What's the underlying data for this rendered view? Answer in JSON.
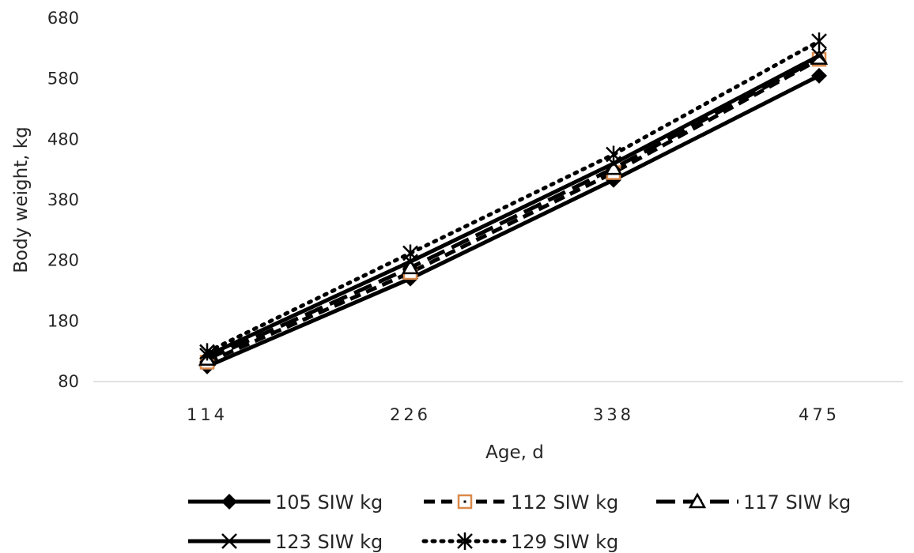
{
  "chart_data": {
    "type": "line",
    "title": "",
    "xlabel": "Age, d",
    "ylabel": "Body weight, kg",
    "categories": [
      "114",
      "226",
      "338",
      "475"
    ],
    "ylim": [
      80,
      680
    ],
    "yticks": [
      80,
      180,
      280,
      380,
      480,
      580,
      680
    ],
    "grid": false,
    "legend_position": "bottom",
    "series": [
      {
        "name": "105 SIW kg",
        "values": [
          105,
          250,
          413,
          585
        ],
        "line": "solid",
        "marker": "diamond-filled",
        "marker_color": "#000000"
      },
      {
        "name": "112 SIW kg",
        "values": [
          112,
          260,
          425,
          612
        ],
        "line": "dashed",
        "marker": "square-open-dot",
        "marker_color": "#d9894a"
      },
      {
        "name": "117 SIW kg",
        "values": [
          117,
          268,
          432,
          614
        ],
        "line": "long-dash",
        "marker": "triangle-open",
        "marker_color": "#000000"
      },
      {
        "name": "123 SIW kg",
        "values": [
          123,
          278,
          440,
          618
        ],
        "line": "solid",
        "marker": "x",
        "marker_color": "#000000"
      },
      {
        "name": "129 SIW kg",
        "values": [
          129,
          292,
          455,
          642
        ],
        "line": "dotted",
        "marker": "asterisk",
        "marker_color": "#000000"
      }
    ]
  }
}
